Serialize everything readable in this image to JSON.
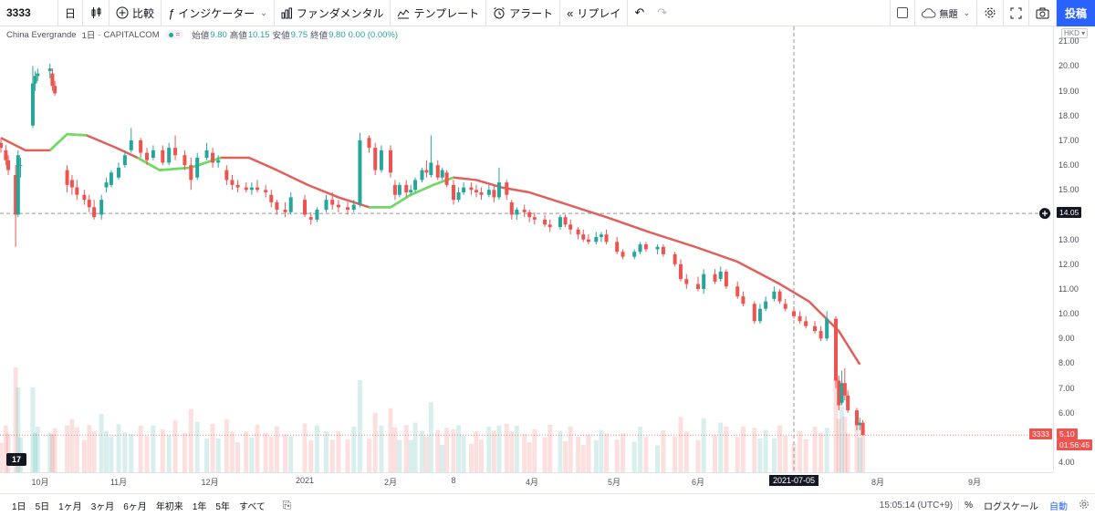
{
  "toolbar": {
    "symbol": "3333",
    "interval": "日",
    "compare": "比較",
    "indicators": "インジケーター",
    "fundamentals": "ファンダメンタル",
    "templates": "テンプレート",
    "alerts": "アラート",
    "replay": "リプレイ",
    "layout_name": "無題",
    "post_label": "投稿"
  },
  "legend": {
    "name": "China Evergrande",
    "interval": "1日",
    "source": "CAPITALCOM",
    "open_label": "始値",
    "open": "9.80",
    "high_label": "高値",
    "high": "10.15",
    "low_label": "安値",
    "low": "9.75",
    "close_label": "終値",
    "close": "9.80",
    "change": "0.00 (0.00%)"
  },
  "price_axis": {
    "currency": "HKD",
    "top_partial": "21.00",
    "labels": [
      "21.00",
      "20.00",
      "19.00",
      "18.00",
      "17.00",
      "16.00",
      "15.00",
      "14.00",
      "13.00",
      "12.00",
      "11.00",
      "10.00",
      "9.00",
      "8.00",
      "7.00",
      "6.00",
      "5.00",
      "4.00"
    ],
    "crosshair_price": "14.05",
    "last_symbol": "3333",
    "last_price": "5.10",
    "countdown": "01:56:45"
  },
  "time_axis": {
    "labels": [
      "10月",
      "11月",
      "12月",
      "2021",
      "2月",
      "8",
      "4月",
      "5月",
      "6月",
      "7月",
      "8月",
      "9月"
    ],
    "crosshair_date": "2021-07-05"
  },
  "bottom_bar": {
    "ranges": [
      "1日",
      "5日",
      "1ヶ月",
      "3ヶ月",
      "6ヶ月",
      "年初来",
      "1年",
      "5年",
      "すべて"
    ],
    "time": "15:05:14 (UTC+9)",
    "percent": "%",
    "log_scale": "ログスケール",
    "auto": "自動"
  },
  "colors": {
    "up": "#26a69a",
    "down": "#ef5350",
    "ma_down": "#e0605c",
    "ma_up": "#66e060",
    "accent": "#2962ff"
  },
  "chart_data": {
    "type": "candlestick",
    "title": "China Evergrande · 1日 · CAPITALCOM",
    "ylim": [
      3.6,
      21.6
    ],
    "crosshair": {
      "price": 14.05,
      "date": "2021-07-05"
    },
    "ma_line": [
      {
        "d": "2020-09-15",
        "v": 17.1
      },
      {
        "d": "2020-09-25",
        "v": 16.6
      },
      {
        "d": "2020-10-05",
        "v": 16.6
      },
      {
        "d": "2020-10-12",
        "v": 17.25
      },
      {
        "d": "2020-10-20",
        "v": 17.2
      },
      {
        "d": "2020-11-01",
        "v": 16.7
      },
      {
        "d": "2020-11-08",
        "v": 16.3
      },
      {
        "d": "2020-11-15",
        "v": 15.8
      },
      {
        "d": "2020-11-25",
        "v": 15.9
      },
      {
        "d": "2020-12-05",
        "v": 16.3
      },
      {
        "d": "2020-12-15",
        "v": 16.3
      },
      {
        "d": "2020-12-25",
        "v": 15.8
      },
      {
        "d": "2021-01-05",
        "v": 15.2
      },
      {
        "d": "2021-01-15",
        "v": 14.7
      },
      {
        "d": "2021-01-25",
        "v": 14.3
      },
      {
        "d": "2021-02-01",
        "v": 14.3
      },
      {
        "d": "2021-02-10",
        "v": 14.8
      },
      {
        "d": "2021-02-20",
        "v": 15.2
      },
      {
        "d": "2021-03-01",
        "v": 15.5
      },
      {
        "d": "2021-03-10",
        "v": 15.4
      },
      {
        "d": "2021-03-20",
        "v": 15.1
      },
      {
        "d": "2021-03-31",
        "v": 14.9
      },
      {
        "d": "2021-04-15",
        "v": 14.4
      },
      {
        "d": "2021-04-30",
        "v": 13.9
      },
      {
        "d": "2021-05-15",
        "v": 13.3
      },
      {
        "d": "2021-05-31",
        "v": 12.7
      },
      {
        "d": "2021-06-15",
        "v": 12.1
      },
      {
        "d": "2021-06-30",
        "v": 11.2
      },
      {
        "d": "2021-07-10",
        "v": 10.5
      },
      {
        "d": "2021-07-20",
        "v": 9.3
      },
      {
        "d": "2021-07-27",
        "v": 7.95
      }
    ],
    "ma_green_segments": [
      [
        "2020-10-05",
        "2020-10-20"
      ],
      [
        "2020-11-08",
        "2020-12-05"
      ],
      [
        "2021-01-25",
        "2021-03-05"
      ]
    ],
    "candles": [
      {
        "d": "2020-09-15",
        "o": 16.9,
        "h": 17.1,
        "l": 16.5,
        "c": 16.7
      },
      {
        "d": "2020-09-17",
        "o": 16.6,
        "h": 16.8,
        "l": 16.0,
        "c": 16.2
      },
      {
        "d": "2020-09-18",
        "o": 16.2,
        "h": 16.4,
        "l": 15.6,
        "c": 15.8
      },
      {
        "d": "2020-09-21",
        "o": 15.6,
        "h": 16.0,
        "l": 12.7,
        "c": 14.0
      },
      {
        "d": "2020-09-22",
        "o": 14.0,
        "h": 16.6,
        "l": 13.9,
        "c": 16.4
      },
      {
        "d": "2020-09-23",
        "o": 16.0,
        "h": 16.3,
        "l": 15.5,
        "c": 16.0
      },
      {
        "d": "2020-09-28",
        "o": 17.6,
        "h": 20.0,
        "l": 17.5,
        "c": 19.3
      },
      {
        "d": "2020-09-29",
        "o": 19.3,
        "h": 19.8,
        "l": 19.0,
        "c": 19.6
      },
      {
        "d": "2020-09-30",
        "o": 19.6,
        "h": 19.9,
        "l": 19.4,
        "c": 19.7
      },
      {
        "d": "2020-10-05",
        "o": 19.8,
        "h": 20.1,
        "l": 19.5,
        "c": 19.9
      },
      {
        "d": "2020-10-06",
        "o": 19.7,
        "h": 19.9,
        "l": 19.0,
        "c": 19.2
      },
      {
        "d": "2020-10-07",
        "o": 19.2,
        "h": 19.4,
        "l": 18.8,
        "c": 18.9
      },
      {
        "d": "2020-10-12",
        "o": 15.8,
        "h": 16.0,
        "l": 14.9,
        "c": 15.2
      },
      {
        "d": "2020-10-14",
        "o": 15.4,
        "h": 15.6,
        "l": 14.8,
        "c": 15.1
      },
      {
        "d": "2020-10-16",
        "o": 15.1,
        "h": 15.4,
        "l": 14.6,
        "c": 14.8
      },
      {
        "d": "2020-10-19",
        "o": 14.8,
        "h": 15.0,
        "l": 14.4,
        "c": 14.6
      },
      {
        "d": "2020-10-21",
        "o": 14.6,
        "h": 14.8,
        "l": 14.1,
        "c": 14.3
      },
      {
        "d": "2020-10-23",
        "o": 14.3,
        "h": 14.6,
        "l": 13.8,
        "c": 13.9
      },
      {
        "d": "2020-10-26",
        "o": 14.0,
        "h": 14.8,
        "l": 13.8,
        "c": 14.6
      },
      {
        "d": "2020-10-28",
        "o": 15.1,
        "h": 15.5,
        "l": 14.9,
        "c": 15.3
      },
      {
        "d": "2020-10-30",
        "o": 15.2,
        "h": 15.8,
        "l": 15.1,
        "c": 15.7
      },
      {
        "d": "2020-11-02",
        "o": 15.5,
        "h": 16.1,
        "l": 15.4,
        "c": 15.9
      },
      {
        "d": "2020-11-04",
        "o": 16.0,
        "h": 16.6,
        "l": 15.9,
        "c": 16.4
      },
      {
        "d": "2020-11-06",
        "o": 16.6,
        "h": 17.5,
        "l": 16.5,
        "c": 17.0
      },
      {
        "d": "2020-11-09",
        "o": 17.0,
        "h": 17.1,
        "l": 16.3,
        "c": 16.5
      },
      {
        "d": "2020-11-11",
        "o": 16.5,
        "h": 16.7,
        "l": 16.0,
        "c": 16.2
      },
      {
        "d": "2020-11-13",
        "o": 16.3,
        "h": 16.8,
        "l": 16.2,
        "c": 16.6
      },
      {
        "d": "2020-11-16",
        "o": 16.6,
        "h": 16.8,
        "l": 16.0,
        "c": 16.1
      },
      {
        "d": "2020-11-18",
        "o": 16.1,
        "h": 16.9,
        "l": 16.0,
        "c": 16.7
      },
      {
        "d": "2020-11-20",
        "o": 16.7,
        "h": 17.2,
        "l": 16.2,
        "c": 16.4
      },
      {
        "d": "2020-11-23",
        "o": 16.4,
        "h": 16.6,
        "l": 15.8,
        "c": 16.0
      },
      {
        "d": "2020-11-25",
        "o": 16.0,
        "h": 16.3,
        "l": 15.0,
        "c": 15.4
      },
      {
        "d": "2020-11-27",
        "o": 15.5,
        "h": 16.5,
        "l": 15.4,
        "c": 16.3
      },
      {
        "d": "2020-11-30",
        "o": 16.3,
        "h": 16.9,
        "l": 16.2,
        "c": 16.6
      },
      {
        "d": "2020-12-02",
        "o": 16.5,
        "h": 16.7,
        "l": 15.9,
        "c": 16.1
      },
      {
        "d": "2020-12-04",
        "o": 16.1,
        "h": 16.4,
        "l": 15.9,
        "c": 16.2
      },
      {
        "d": "2020-12-07",
        "o": 15.8,
        "h": 16.0,
        "l": 15.2,
        "c": 15.4
      },
      {
        "d": "2020-12-09",
        "o": 15.4,
        "h": 15.6,
        "l": 15.0,
        "c": 15.2
      },
      {
        "d": "2020-12-11",
        "o": 15.2,
        "h": 15.4,
        "l": 14.9,
        "c": 15.1
      },
      {
        "d": "2020-12-14",
        "o": 15.1,
        "h": 15.3,
        "l": 14.9,
        "c": 15.0
      },
      {
        "d": "2020-12-16",
        "o": 15.0,
        "h": 15.3,
        "l": 14.8,
        "c": 15.1
      },
      {
        "d": "2020-12-18",
        "o": 15.1,
        "h": 15.4,
        "l": 14.9,
        "c": 15.0
      },
      {
        "d": "2020-12-21",
        "o": 15.0,
        "h": 15.2,
        "l": 14.7,
        "c": 14.9
      },
      {
        "d": "2020-12-23",
        "o": 14.8,
        "h": 15.0,
        "l": 14.3,
        "c": 14.5
      },
      {
        "d": "2020-12-25",
        "o": 14.5,
        "h": 14.6,
        "l": 14.0,
        "c": 14.2
      },
      {
        "d": "2020-12-28",
        "o": 14.2,
        "h": 14.5,
        "l": 13.9,
        "c": 14.1
      },
      {
        "d": "2020-12-30",
        "o": 14.1,
        "h": 14.9,
        "l": 14.0,
        "c": 14.7
      },
      {
        "d": "2021-01-04",
        "o": 14.6,
        "h": 14.8,
        "l": 13.9,
        "c": 14.0
      },
      {
        "d": "2021-01-06",
        "o": 13.9,
        "h": 14.1,
        "l": 13.6,
        "c": 13.8
      },
      {
        "d": "2021-01-08",
        "o": 13.8,
        "h": 14.3,
        "l": 13.7,
        "c": 14.2
      },
      {
        "d": "2021-01-11",
        "o": 14.2,
        "h": 14.8,
        "l": 14.1,
        "c": 14.6
      },
      {
        "d": "2021-01-13",
        "o": 14.6,
        "h": 14.9,
        "l": 14.2,
        "c": 14.4
      },
      {
        "d": "2021-01-15",
        "o": 14.4,
        "h": 14.6,
        "l": 14.1,
        "c": 14.3
      },
      {
        "d": "2021-01-18",
        "o": 14.3,
        "h": 14.5,
        "l": 14.0,
        "c": 14.2
      },
      {
        "d": "2021-01-20",
        "o": 14.2,
        "h": 14.6,
        "l": 14.1,
        "c": 14.4
      },
      {
        "d": "2021-01-22",
        "o": 14.4,
        "h": 17.3,
        "l": 14.3,
        "c": 17.0
      },
      {
        "d": "2021-01-25",
        "o": 17.1,
        "h": 17.2,
        "l": 16.5,
        "c": 16.7
      },
      {
        "d": "2021-01-27",
        "o": 16.7,
        "h": 16.9,
        "l": 15.6,
        "c": 15.8
      },
      {
        "d": "2021-01-29",
        "o": 15.8,
        "h": 16.8,
        "l": 15.7,
        "c": 16.6
      },
      {
        "d": "2021-02-01",
        "o": 16.6,
        "h": 16.8,
        "l": 15.5,
        "c": 15.7
      },
      {
        "d": "2021-02-03",
        "o": 15.2,
        "h": 15.4,
        "l": 14.6,
        "c": 14.8
      },
      {
        "d": "2021-02-05",
        "o": 14.8,
        "h": 15.3,
        "l": 14.7,
        "c": 15.2
      },
      {
        "d": "2021-02-08",
        "o": 15.2,
        "h": 15.4,
        "l": 14.7,
        "c": 14.9
      },
      {
        "d": "2021-02-10",
        "o": 14.9,
        "h": 15.2,
        "l": 14.8,
        "c": 15.0
      },
      {
        "d": "2021-02-12",
        "o": 15.0,
        "h": 15.5,
        "l": 14.9,
        "c": 15.4
      },
      {
        "d": "2021-02-15",
        "o": 15.4,
        "h": 15.9,
        "l": 15.3,
        "c": 15.8
      },
      {
        "d": "2021-02-17",
        "o": 15.8,
        "h": 16.2,
        "l": 15.5,
        "c": 15.7
      },
      {
        "d": "2021-02-19",
        "o": 15.6,
        "h": 17.2,
        "l": 15.5,
        "c": 16.1
      },
      {
        "d": "2021-02-22",
        "o": 16.0,
        "h": 16.2,
        "l": 15.4,
        "c": 15.5
      },
      {
        "d": "2021-02-24",
        "o": 15.5,
        "h": 15.9,
        "l": 15.4,
        "c": 15.8
      },
      {
        "d": "2021-02-26",
        "o": 15.7,
        "h": 15.8,
        "l": 15.1,
        "c": 15.2
      },
      {
        "d": "2021-03-01",
        "o": 15.2,
        "h": 15.4,
        "l": 14.4,
        "c": 14.6
      },
      {
        "d": "2021-03-03",
        "o": 14.6,
        "h": 15.1,
        "l": 14.5,
        "c": 14.9
      },
      {
        "d": "2021-03-05",
        "o": 14.9,
        "h": 15.3,
        "l": 14.8,
        "c": 15.1
      },
      {
        "d": "2021-03-08",
        "o": 15.1,
        "h": 15.3,
        "l": 14.8,
        "c": 15.0
      },
      {
        "d": "2021-03-10",
        "o": 15.0,
        "h": 15.2,
        "l": 14.7,
        "c": 14.9
      },
      {
        "d": "2021-03-12",
        "o": 14.9,
        "h": 15.1,
        "l": 14.6,
        "c": 14.8
      },
      {
        "d": "2021-03-15",
        "o": 14.8,
        "h": 15.2,
        "l": 14.7,
        "c": 15.0
      },
      {
        "d": "2021-03-17",
        "o": 15.0,
        "h": 15.2,
        "l": 14.5,
        "c": 14.7
      },
      {
        "d": "2021-03-19",
        "o": 14.7,
        "h": 15.9,
        "l": 14.6,
        "c": 15.3
      },
      {
        "d": "2021-03-22",
        "o": 15.3,
        "h": 15.4,
        "l": 14.6,
        "c": 14.8
      },
      {
        "d": "2021-03-24",
        "o": 14.5,
        "h": 14.6,
        "l": 13.8,
        "c": 14.0
      },
      {
        "d": "2021-03-26",
        "o": 14.0,
        "h": 14.3,
        "l": 13.8,
        "c": 14.2
      },
      {
        "d": "2021-03-29",
        "o": 14.2,
        "h": 14.4,
        "l": 13.9,
        "c": 14.1
      },
      {
        "d": "2021-03-31",
        "o": 14.1,
        "h": 14.2,
        "l": 13.7,
        "c": 13.9
      },
      {
        "d": "2021-04-02",
        "o": 13.9,
        "h": 14.1,
        "l": 13.6,
        "c": 13.8
      },
      {
        "d": "2021-04-06",
        "o": 13.8,
        "h": 14.0,
        "l": 13.5,
        "c": 13.6
      },
      {
        "d": "2021-04-08",
        "o": 13.6,
        "h": 13.8,
        "l": 13.3,
        "c": 13.5
      },
      {
        "d": "2021-04-12",
        "o": 13.5,
        "h": 14.0,
        "l": 13.4,
        "c": 13.9
      },
      {
        "d": "2021-04-14",
        "o": 13.9,
        "h": 14.0,
        "l": 13.5,
        "c": 13.6
      },
      {
        "d": "2021-04-16",
        "o": 13.6,
        "h": 13.8,
        "l": 13.2,
        "c": 13.4
      },
      {
        "d": "2021-04-19",
        "o": 13.4,
        "h": 13.5,
        "l": 13.0,
        "c": 13.2
      },
      {
        "d": "2021-04-21",
        "o": 13.2,
        "h": 13.4,
        "l": 12.9,
        "c": 13.0
      },
      {
        "d": "2021-04-23",
        "o": 13.0,
        "h": 13.2,
        "l": 12.8,
        "c": 12.9
      },
      {
        "d": "2021-04-26",
        "o": 12.9,
        "h": 13.3,
        "l": 12.8,
        "c": 13.1
      },
      {
        "d": "2021-04-28",
        "o": 13.1,
        "h": 13.3,
        "l": 12.9,
        "c": 13.2
      },
      {
        "d": "2021-04-30",
        "o": 13.2,
        "h": 13.4,
        "l": 12.8,
        "c": 12.9
      },
      {
        "d": "2021-05-04",
        "o": 12.9,
        "h": 13.1,
        "l": 12.4,
        "c": 12.5
      },
      {
        "d": "2021-05-06",
        "o": 12.5,
        "h": 12.6,
        "l": 12.2,
        "c": 12.3
      },
      {
        "d": "2021-05-10",
        "o": 12.3,
        "h": 12.6,
        "l": 12.2,
        "c": 12.5
      },
      {
        "d": "2021-05-12",
        "o": 12.5,
        "h": 12.9,
        "l": 12.4,
        "c": 12.8
      },
      {
        "d": "2021-05-14",
        "o": 12.8,
        "h": 12.9,
        "l": 12.5,
        "c": 12.6
      },
      {
        "d": "2021-05-18",
        "o": 12.6,
        "h": 12.8,
        "l": 12.4,
        "c": 12.7
      },
      {
        "d": "2021-05-20",
        "o": 12.7,
        "h": 12.8,
        "l": 12.3,
        "c": 12.4
      },
      {
        "d": "2021-05-24",
        "o": 12.4,
        "h": 12.5,
        "l": 11.9,
        "c": 12.0
      },
      {
        "d": "2021-05-26",
        "o": 12.0,
        "h": 12.2,
        "l": 11.3,
        "c": 11.4
      },
      {
        "d": "2021-05-28",
        "o": 11.4,
        "h": 11.6,
        "l": 11.0,
        "c": 11.2
      },
      {
        "d": "2021-06-01",
        "o": 11.2,
        "h": 11.5,
        "l": 10.9,
        "c": 11.0
      },
      {
        "d": "2021-06-03",
        "o": 11.0,
        "h": 11.8,
        "l": 10.8,
        "c": 11.6
      },
      {
        "d": "2021-06-07",
        "o": 11.6,
        "h": 11.8,
        "l": 11.2,
        "c": 11.3
      },
      {
        "d": "2021-06-09",
        "o": 11.4,
        "h": 11.9,
        "l": 11.3,
        "c": 11.7
      },
      {
        "d": "2021-06-11",
        "o": 11.7,
        "h": 11.8,
        "l": 11.0,
        "c": 11.1
      },
      {
        "d": "2021-06-15",
        "o": 11.1,
        "h": 11.3,
        "l": 10.6,
        "c": 10.7
      },
      {
        "d": "2021-06-17",
        "o": 10.7,
        "h": 10.9,
        "l": 10.3,
        "c": 10.4
      },
      {
        "d": "2021-06-21",
        "o": 10.4,
        "h": 10.5,
        "l": 9.6,
        "c": 9.7
      },
      {
        "d": "2021-06-23",
        "o": 9.7,
        "h": 10.4,
        "l": 9.6,
        "c": 10.2
      },
      {
        "d": "2021-06-25",
        "o": 10.2,
        "h": 10.7,
        "l": 10.1,
        "c": 10.5
      },
      {
        "d": "2021-06-28",
        "o": 10.6,
        "h": 11.1,
        "l": 10.5,
        "c": 10.9
      },
      {
        "d": "2021-06-30",
        "o": 10.9,
        "h": 11.0,
        "l": 10.4,
        "c": 10.5
      },
      {
        "d": "2021-07-02",
        "o": 10.4,
        "h": 10.6,
        "l": 10.1,
        "c": 10.2
      },
      {
        "d": "2021-07-05",
        "o": 10.1,
        "h": 10.3,
        "l": 9.8,
        "c": 9.9
      },
      {
        "d": "2021-07-07",
        "o": 9.9,
        "h": 10.1,
        "l": 9.6,
        "c": 9.7
      },
      {
        "d": "2021-07-09",
        "o": 9.7,
        "h": 9.9,
        "l": 9.4,
        "c": 9.5
      },
      {
        "d": "2021-07-12",
        "o": 9.5,
        "h": 9.7,
        "l": 9.2,
        "c": 9.3
      },
      {
        "d": "2021-07-14",
        "o": 9.3,
        "h": 9.5,
        "l": 8.9,
        "c": 9.0
      },
      {
        "d": "2021-07-16",
        "o": 9.0,
        "h": 10.1,
        "l": 8.9,
        "c": 9.8
      },
      {
        "d": "2021-07-19",
        "o": 9.8,
        "h": 9.9,
        "l": 7.0,
        "c": 7.3
      },
      {
        "d": "2021-07-20",
        "o": 7.3,
        "h": 7.5,
        "l": 6.1,
        "c": 6.3
      },
      {
        "d": "2021-07-21",
        "o": 6.4,
        "h": 7.7,
        "l": 6.3,
        "c": 7.2
      },
      {
        "d": "2021-07-22",
        "o": 7.2,
        "h": 7.8,
        "l": 6.5,
        "c": 6.7
      },
      {
        "d": "2021-07-23",
        "o": 6.7,
        "h": 6.9,
        "l": 6.0,
        "c": 6.1
      },
      {
        "d": "2021-07-26",
        "o": 6.1,
        "h": 6.2,
        "l": 5.3,
        "c": 5.5
      },
      {
        "d": "2021-07-27",
        "o": 5.5,
        "h": 5.8,
        "l": 5.3,
        "c": 5.6
      },
      {
        "d": "2021-07-28",
        "o": 5.6,
        "h": 5.7,
        "l": 5.1,
        "c": 5.1
      }
    ]
  }
}
